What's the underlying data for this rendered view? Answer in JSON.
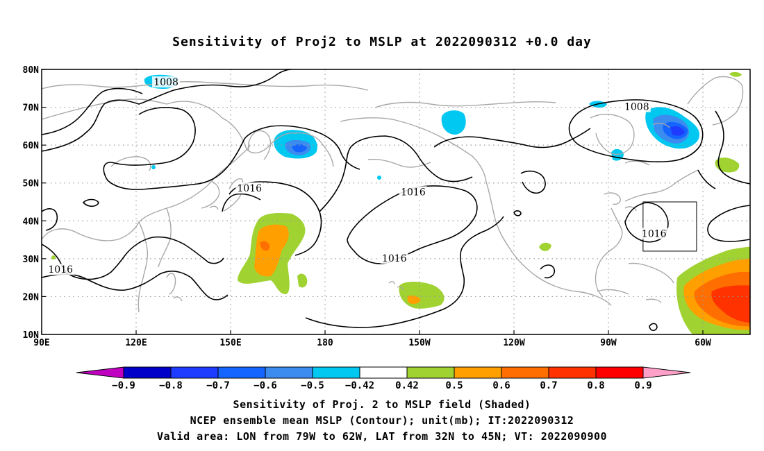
{
  "title": "Sensitivity of Proj2 to MSLP at 2022090312 +0.0 day",
  "map": {
    "lon_ticks": [
      {
        "lon": 90,
        "label": "90E"
      },
      {
        "lon": 120,
        "label": "120E"
      },
      {
        "lon": 150,
        "label": "150E"
      },
      {
        "lon": 180,
        "label": "180"
      },
      {
        "lon": 210,
        "label": "150W"
      },
      {
        "lon": 240,
        "label": "120W"
      },
      {
        "lon": 270,
        "label": "90W"
      },
      {
        "lon": 300,
        "label": "60W"
      }
    ],
    "lat_ticks": [
      {
        "lat": 80,
        "label": "80N"
      },
      {
        "lat": 70,
        "label": "70N"
      },
      {
        "lat": 60,
        "label": "60N"
      },
      {
        "lat": 50,
        "label": "50N"
      },
      {
        "lat": 40,
        "label": "40N"
      },
      {
        "lat": 30,
        "label": "30N"
      },
      {
        "lat": 20,
        "label": "20N"
      },
      {
        "lat": 10,
        "label": "10N"
      }
    ],
    "lon_range": [
      90,
      315
    ],
    "lat_range": [
      10,
      80
    ],
    "grid": true,
    "contour_labels": [
      {
        "text": "1008",
        "lon": 129.5,
        "lat": 76.5
      },
      {
        "text": "1008",
        "lon": 279,
        "lat": 70
      },
      {
        "text": "1016",
        "lon": 96,
        "lat": 27
      },
      {
        "text": "1016",
        "lon": 156,
        "lat": 48.5
      },
      {
        "text": "1016",
        "lon": 202,
        "lat": 30
      },
      {
        "text": "1016",
        "lon": 208,
        "lat": 47.5
      },
      {
        "text": "1016",
        "lon": 284.5,
        "lat": 36.5
      }
    ],
    "valid_box": {
      "lon": [
        281,
        298
      ],
      "lat": [
        32,
        45
      ]
    }
  },
  "colorbar": {
    "labels": [
      "-0.9",
      "-0.8",
      "-0.7",
      "-0.6",
      "-0.5",
      "-0.42",
      "0.42",
      "0.5",
      "0.6",
      "0.7",
      "0.8",
      "0.9"
    ],
    "colors": [
      "#c000c0",
      "#0000c8",
      "#1e3cff",
      "#1464ff",
      "#3c8cf0",
      "#00c8f0",
      "#ffffff",
      "#a0d232",
      "#ffa000",
      "#ff6e00",
      "#ff3200",
      "#ff0000",
      "#ffa0c8"
    ]
  },
  "captions": {
    "line1": "Sensitivity of Proj. 2 to MSLP field (Shaded)",
    "line2": "NCEP ensemble mean MSLP (Contour); unit(mb); IT:2022090312",
    "line3": "Valid area: LON from 79W to 62W, LAT from 32N to 45N; VT: 2022090900"
  }
}
